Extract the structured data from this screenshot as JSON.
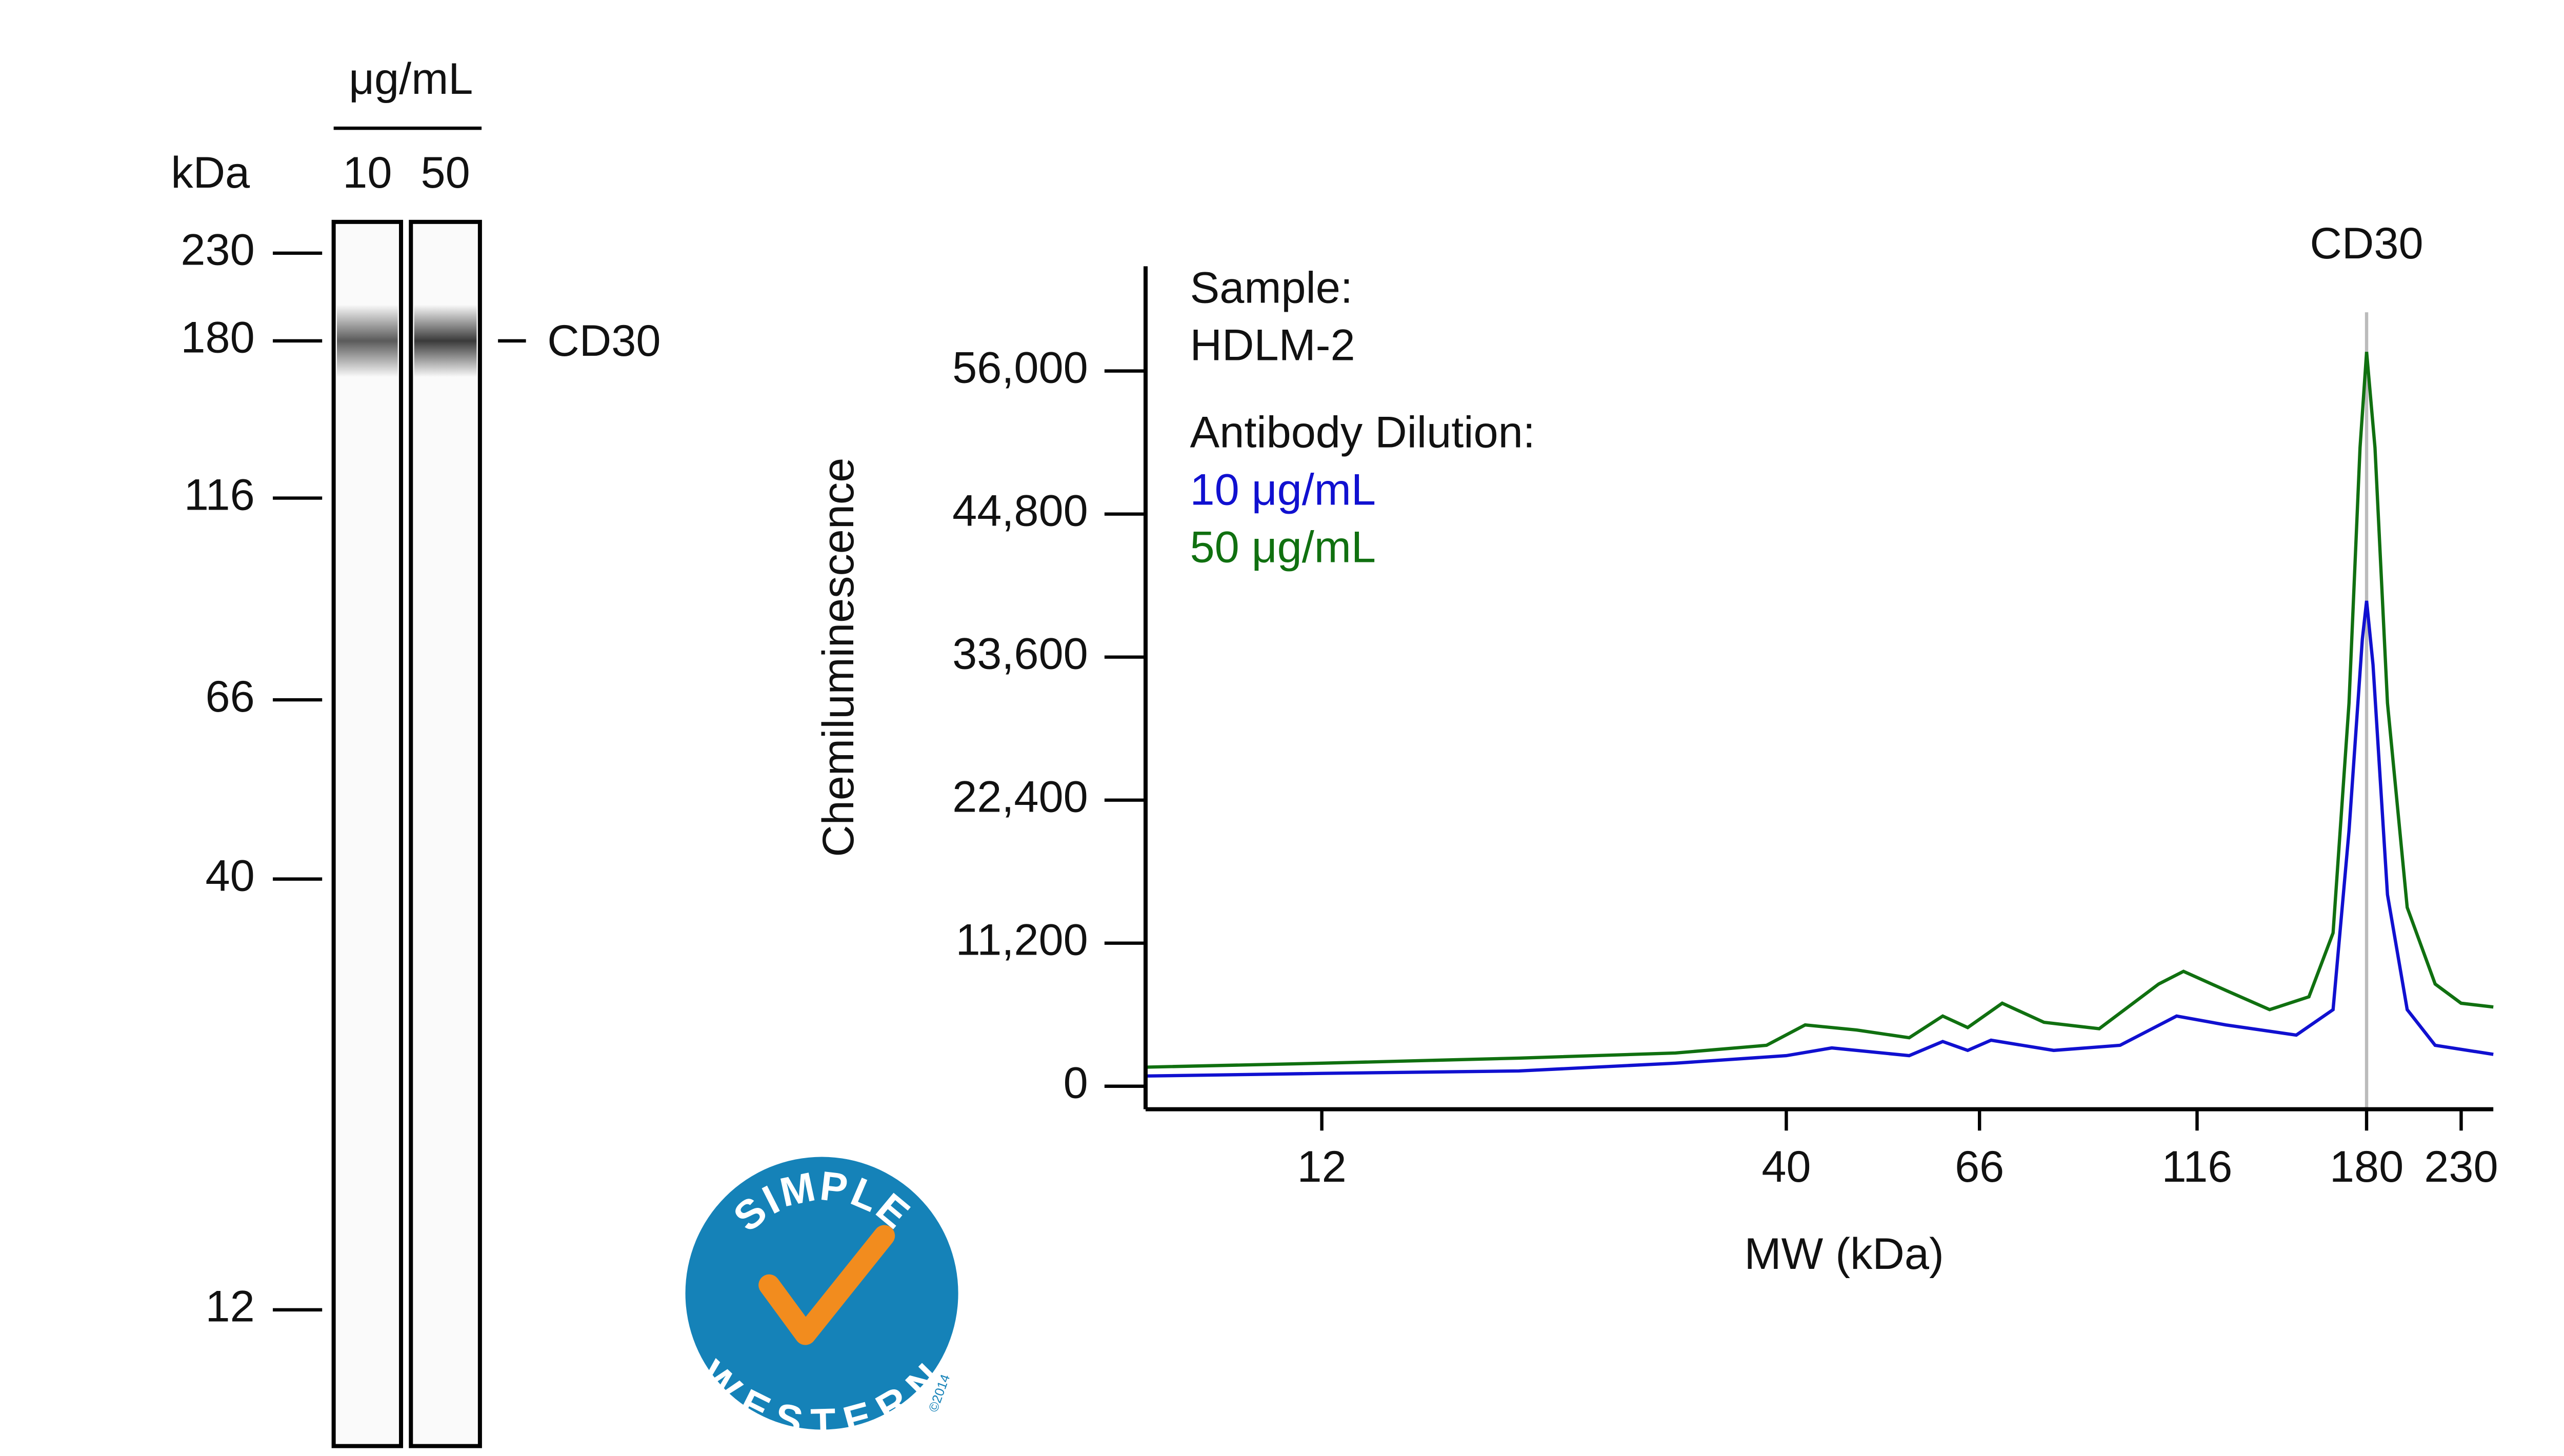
{
  "chart_data": [
    {
      "type": "gel",
      "title": "μg/mL",
      "ylabel": "kDa",
      "lanes": [
        "10",
        "50"
      ],
      "yscale": "log",
      "ylim": [
        8.2,
        251
      ],
      "yticks": [
        230,
        180,
        116,
        66,
        40,
        12
      ],
      "band": {
        "label": "CD30",
        "value": 180
      },
      "band_colors": [
        "#5a5a5a",
        "#3a3a3a"
      ]
    },
    {
      "type": "line",
      "xlabel": "MW (kDa)",
      "ylabel": "Chemiluminescence",
      "notes": [
        "Sample:",
        "HDLM-2",
        "Antibody Dilution:"
      ],
      "xscale": "log",
      "xlim": [
        7.6,
        250
      ],
      "xticks": [
        12,
        40,
        66,
        116,
        180,
        230
      ],
      "ylim": [
        -1800,
        64200
      ],
      "yticks": [
        0,
        {
          "value": 11200,
          "label": "11,200"
        },
        {
          "value": 22400,
          "label": "22,400"
        },
        {
          "value": 33600,
          "label": "33,600"
        },
        {
          "value": 44800,
          "label": "44,800"
        },
        {
          "value": 56000,
          "label": "56,000"
        }
      ],
      "marker": {
        "x": 180,
        "label": "CD30",
        "color": "#bbbbbb"
      },
      "series": [
        {
          "name": "10 μg/mL",
          "color": "#1010d0",
          "x": [
            7.6,
            12,
            20,
            30,
            40,
            45,
            55,
            60,
            64,
            68,
            80,
            95,
            110,
            125,
            150,
            165,
            172,
            178,
            180,
            183,
            190,
            200,
            215,
            250
          ],
          "values": [
            800,
            1000,
            1200,
            1800,
            2400,
            3000,
            2400,
            3500,
            2800,
            3600,
            2800,
            3200,
            5500,
            4800,
            4000,
            6000,
            20000,
            35000,
            38000,
            33000,
            15000,
            6000,
            3200,
            2500
          ]
        },
        {
          "name": "50 μg/mL",
          "color": "#107010",
          "x": [
            7.6,
            12,
            20,
            30,
            38,
            42,
            48,
            55,
            60,
            64,
            70,
            78,
            90,
            105,
            112,
            125,
            140,
            155,
            165,
            172,
            177,
            180,
            184,
            190,
            200,
            215,
            230,
            250
          ],
          "values": [
            1500,
            1800,
            2200,
            2600,
            3200,
            4800,
            4400,
            3800,
            5500,
            4600,
            6500,
            5000,
            4500,
            8000,
            9000,
            7500,
            6000,
            7000,
            12000,
            30000,
            50000,
            57500,
            50000,
            30000,
            14000,
            8000,
            6500,
            6200
          ]
        }
      ]
    }
  ],
  "logo": {
    "top": "SIMPLE",
    "bottom": "WESTERN",
    "copyright": "©2014"
  }
}
